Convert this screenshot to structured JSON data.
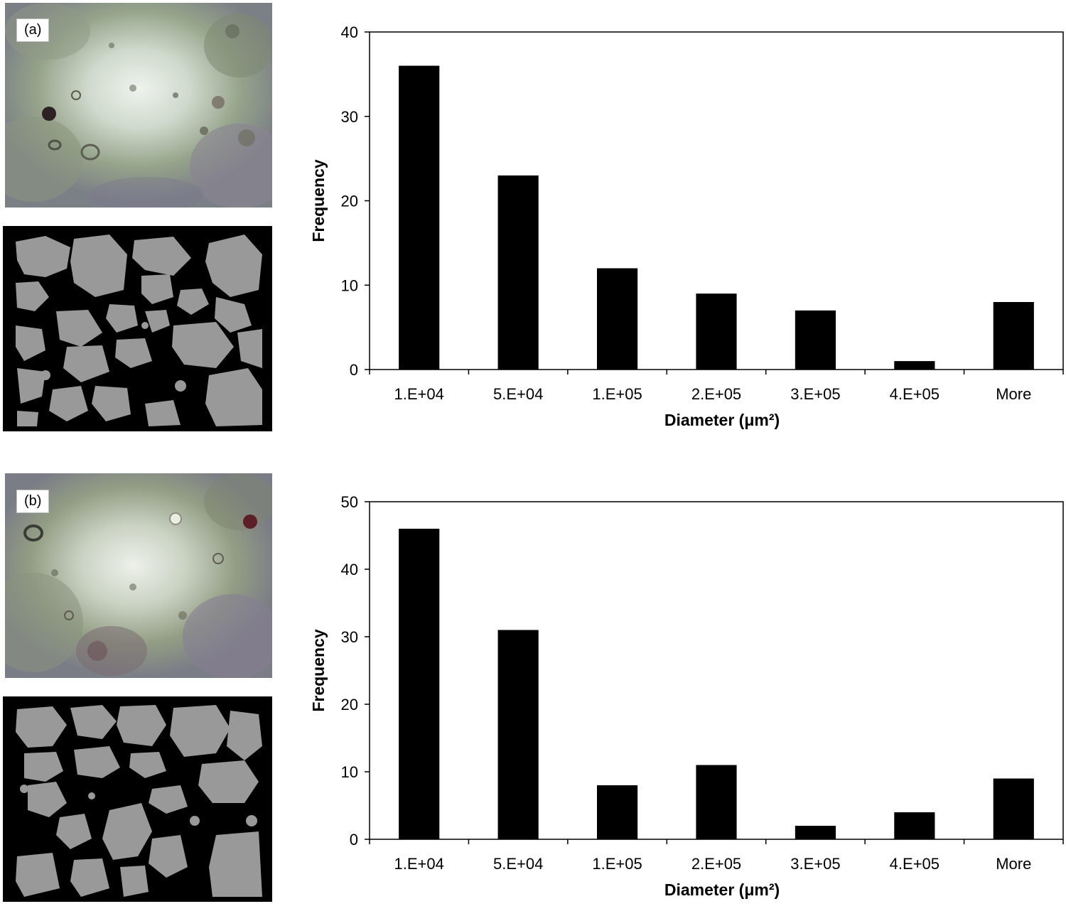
{
  "figure": {
    "panels": [
      {
        "id": "a",
        "label": "(a)"
      },
      {
        "id": "b",
        "label": "(b)"
      }
    ]
  },
  "chart_data": [
    {
      "type": "bar",
      "panel": "(a)",
      "categories": [
        "1.E+04",
        "5.E+04",
        "1.E+05",
        "2.E+05",
        "3.E+05",
        "4.E+05",
        "More"
      ],
      "values": [
        36,
        23,
        12,
        9,
        7,
        1,
        8
      ],
      "xlabel": "Diameter (μm²)",
      "ylabel": "Frequency",
      "ylim": [
        0,
        40
      ],
      "yticks": [
        0,
        10,
        20,
        30,
        40
      ],
      "bar_color": "#000000",
      "grid": false,
      "legend": "none"
    },
    {
      "type": "bar",
      "panel": "(b)",
      "categories": [
        "1.E+04",
        "5.E+04",
        "1.E+05",
        "2.E+05",
        "3.E+05",
        "4.E+05",
        "More"
      ],
      "values": [
        46,
        31,
        8,
        11,
        2,
        4,
        9
      ],
      "xlabel": "Diameter (μm²)",
      "ylabel": "Frequency",
      "ylim": [
        0,
        50
      ],
      "yticks": [
        0,
        10,
        20,
        30,
        40,
        50
      ],
      "bar_color": "#000000",
      "grid": false,
      "legend": "none"
    }
  ],
  "colors": {
    "mask_background": "#000000",
    "mask_particles": "#999999"
  }
}
